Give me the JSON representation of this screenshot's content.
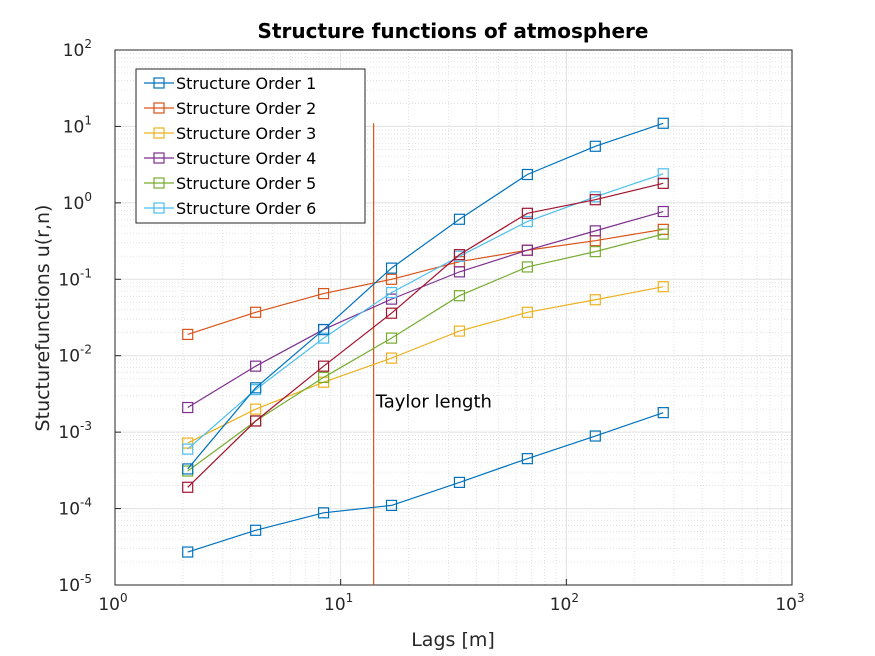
{
  "chart_data": {
    "type": "line",
    "title": "Structure functions  of atmosphere",
    "xlabel": "Lags [m]",
    "ylabel": "Stucturefunctions u(r,n)",
    "xscale": "log",
    "yscale": "log",
    "xlim": [
      1,
      1000
    ],
    "ylim": [
      1e-05,
      100
    ],
    "grid": true,
    "minor_grid": true,
    "legend_position": "top-left",
    "x_ticks": [
      {
        "base": "10",
        "exp": "0"
      },
      {
        "base": "10",
        "exp": "1"
      },
      {
        "base": "10",
        "exp": "2"
      },
      {
        "base": "10",
        "exp": "3"
      }
    ],
    "y_ticks": [
      {
        "base": "10",
        "exp": "-5"
      },
      {
        "base": "10",
        "exp": "-4"
      },
      {
        "base": "10",
        "exp": "-3"
      },
      {
        "base": "10",
        "exp": "-2"
      },
      {
        "base": "10",
        "exp": "-1"
      },
      {
        "base": "10",
        "exp": "0"
      },
      {
        "base": "10",
        "exp": "1"
      },
      {
        "base": "10",
        "exp": "2"
      }
    ],
    "x": [
      2.1,
      4.2,
      8.4,
      16.8,
      33.6,
      67.2,
      134.4,
      268.8
    ],
    "series": [
      {
        "name": "Structure Order 1",
        "color": "#0072BD",
        "values": [
          2.7e-05,
          5.2e-05,
          8.8e-05,
          0.00011,
          0.00022,
          0.00045,
          0.00089,
          0.0018
        ]
      },
      {
        "name": "Structure Order 2",
        "color": "#D95319",
        "values": [
          0.019,
          0.037,
          0.065,
          0.1,
          0.17,
          0.24,
          0.32,
          0.45
        ]
      },
      {
        "name": "Structure Order 3",
        "color": "#EDB120",
        "values": [
          0.00072,
          0.002,
          0.0045,
          0.0093,
          0.021,
          0.037,
          0.054,
          0.08
        ]
      },
      {
        "name": "Structure Order 4",
        "color": "#7E2F8E",
        "values": [
          0.0021,
          0.0073,
          0.022,
          0.055,
          0.125,
          0.24,
          0.43,
          0.77
        ]
      },
      {
        "name": "Structure Order 5",
        "color": "#77AC30",
        "values": [
          0.00031,
          0.0014,
          0.0052,
          0.017,
          0.061,
          0.145,
          0.23,
          0.39
        ]
      },
      {
        "name": "Structure Order 6",
        "color": "#4DBEEE",
        "values": [
          0.0006,
          0.0036,
          0.017,
          0.067,
          0.2,
          0.57,
          1.2,
          2.4
        ]
      },
      {
        "name": "",
        "color": "#0072BD",
        "values": [
          0.00033,
          0.0038,
          0.022,
          0.14,
          0.61,
          2.35,
          5.5,
          11.0
        ]
      },
      {
        "name": "",
        "color": "#A2142F",
        "values": [
          0.00019,
          0.0014,
          0.0073,
          0.036,
          0.21,
          0.73,
          1.1,
          1.8
        ]
      }
    ],
    "vline": {
      "x": 14,
      "y_top": 11,
      "color": "#D95319"
    },
    "annotation": {
      "text": "Taylor length",
      "x": 14.3,
      "y": 0.0025
    }
  }
}
